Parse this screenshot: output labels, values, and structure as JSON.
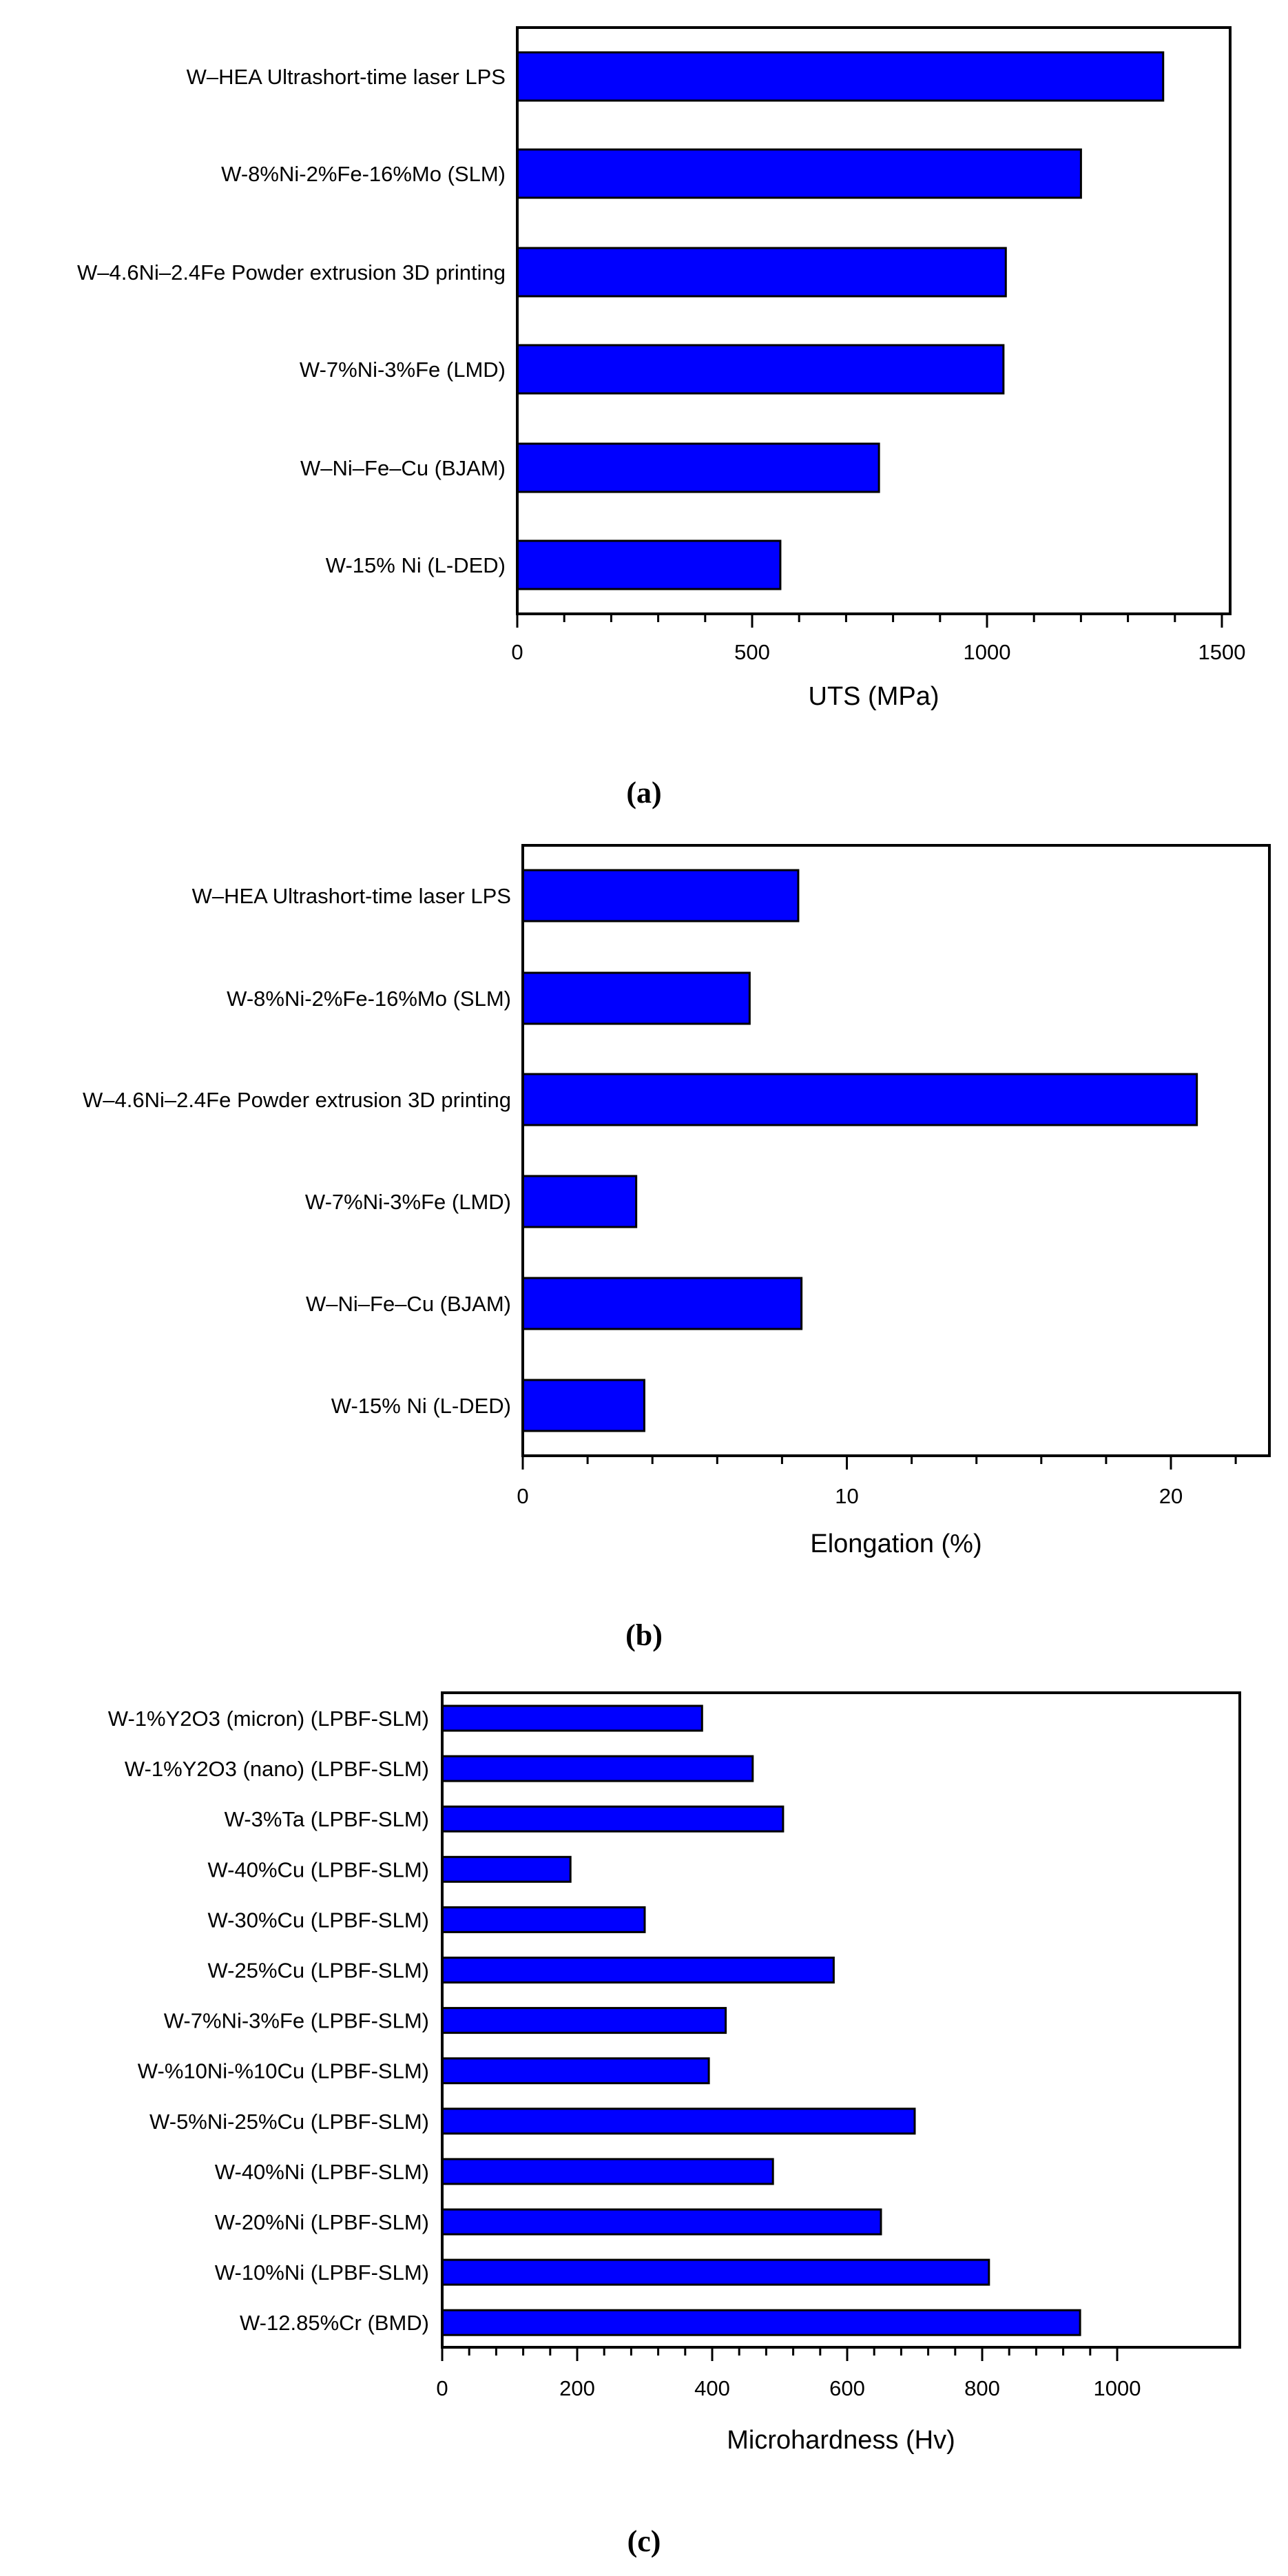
{
  "bar_color": "#0000ff",
  "chart_data": [
    {
      "type": "bar",
      "orientation": "horizontal",
      "panel_label": "(a)",
      "xlabel": "UTS (MPa)",
      "xlim": [
        0,
        1520
      ],
      "xticks": [
        0,
        500,
        1000,
        1500
      ],
      "minor_tick_step": 100,
      "grid": false,
      "categories": [
        "W–HEA Ultrashort-time laser LPS",
        "W-8%Ni-2%Fe-16%Mo (SLM)",
        "W–4.6Ni–2.4Fe Powder extrusion 3D printing",
        "W-7%Ni-3%Fe (LMD)",
        "W–Ni–Fe–Cu (BJAM)",
        "W-15% Ni (L-DED)"
      ],
      "values": [
        1375,
        1200,
        1040,
        1035,
        770,
        560
      ]
    },
    {
      "type": "bar",
      "orientation": "horizontal",
      "panel_label": "(b)",
      "xlabel": "Elongation (%)",
      "xlim": [
        0,
        23
      ],
      "xticks": [
        0,
        10,
        20
      ],
      "minor_tick_step": 2,
      "grid": false,
      "categories": [
        "W–HEA Ultrashort-time laser LPS",
        "W-8%Ni-2%Fe-16%Mo (SLM)",
        "W–4.6Ni–2.4Fe Powder extrusion 3D printing",
        "W-7%Ni-3%Fe (LMD)",
        "W–Ni–Fe–Cu (BJAM)",
        "W-15% Ni (L-DED)"
      ],
      "values": [
        8.5,
        7.0,
        20.8,
        3.5,
        8.6,
        3.75
      ]
    },
    {
      "type": "bar",
      "orientation": "horizontal",
      "panel_label": "(c)",
      "xlabel": "Microhardness (Hv)",
      "xlim": [
        0,
        1038
      ],
      "xticks": [
        0,
        200,
        400,
        600,
        800,
        1000
      ],
      "minor_tick_step": 40,
      "grid": false,
      "categories": [
        "W-1%Y2O3 (micron) (LPBF-SLM)",
        "W-1%Y2O3 (nano) (LPBF-SLM)",
        "W-3%Ta (LPBF-SLM)",
        "W-40%Cu (LPBF-SLM)",
        "W-30%Cu (LPBF-SLM)",
        "W-25%Cu (LPBF-SLM)",
        "W-7%Ni-3%Fe (LPBF-SLM)",
        "W-%10Ni-%10Cu (LPBF-SLM)",
        "W-5%Ni-25%Cu (LPBF-SLM)",
        "W-40%Ni (LPBF-SLM)",
        "W-20%Ni (LPBF-SLM)",
        "W-10%Ni (LPBF-SLM)",
        "W-12.85%Cr (BMD)"
      ],
      "values": [
        385,
        460,
        505,
        190,
        300,
        580,
        420,
        395,
        700,
        490,
        650,
        810,
        945
      ]
    }
  ]
}
